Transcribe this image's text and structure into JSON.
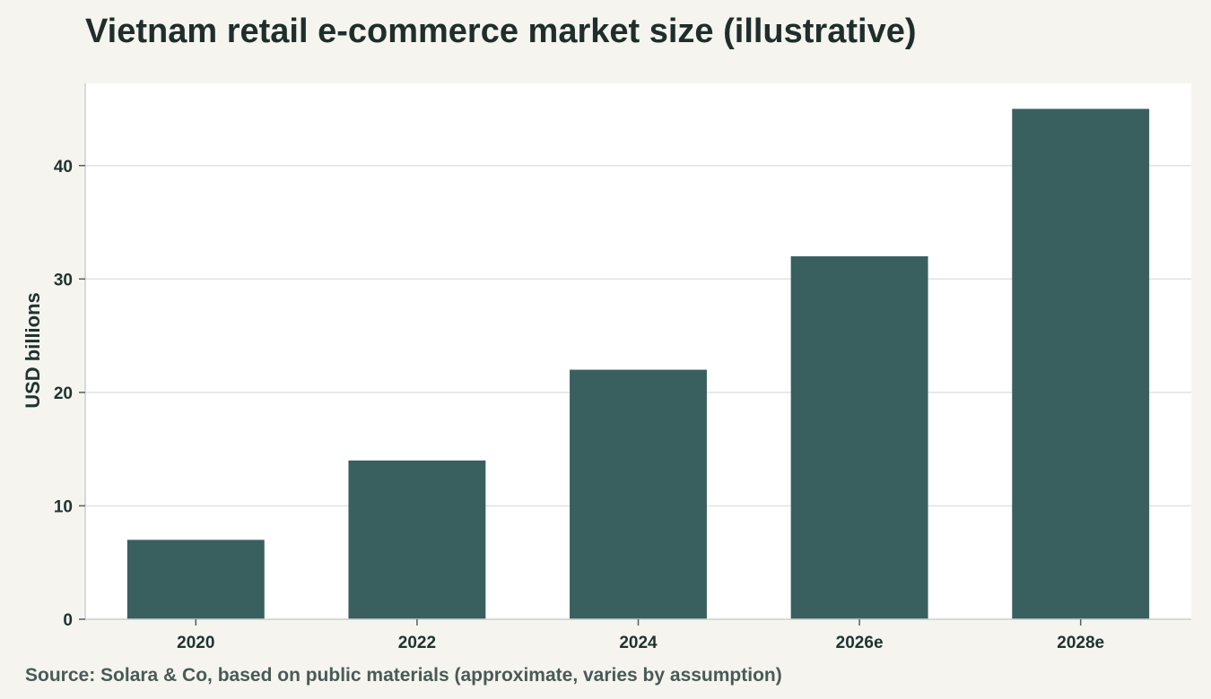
{
  "title": "Vietnam retail e-commerce market size (illustrative)",
  "source_note": "Source: Solara & Co, based on public materials (approximate, varies by assumption)",
  "colors": {
    "bar": "#3a5f5f",
    "plot_background": "#ffffff",
    "page_background": "#f5f4ef",
    "gridline": "#dfe3e2",
    "axis": "#c9d0ce"
  },
  "chart_data": {
    "type": "bar",
    "categories": [
      "2020",
      "2022",
      "2024",
      "2026e",
      "2028e"
    ],
    "values": [
      7,
      14,
      22,
      32,
      45
    ],
    "title": "Vietnam retail e-commerce market size (illustrative)",
    "xlabel": "",
    "ylabel": "USD billions",
    "ylim": [
      0,
      47.25
    ],
    "yticks": [
      0,
      10,
      20,
      30,
      40
    ],
    "grid": true,
    "legend": "none"
  }
}
